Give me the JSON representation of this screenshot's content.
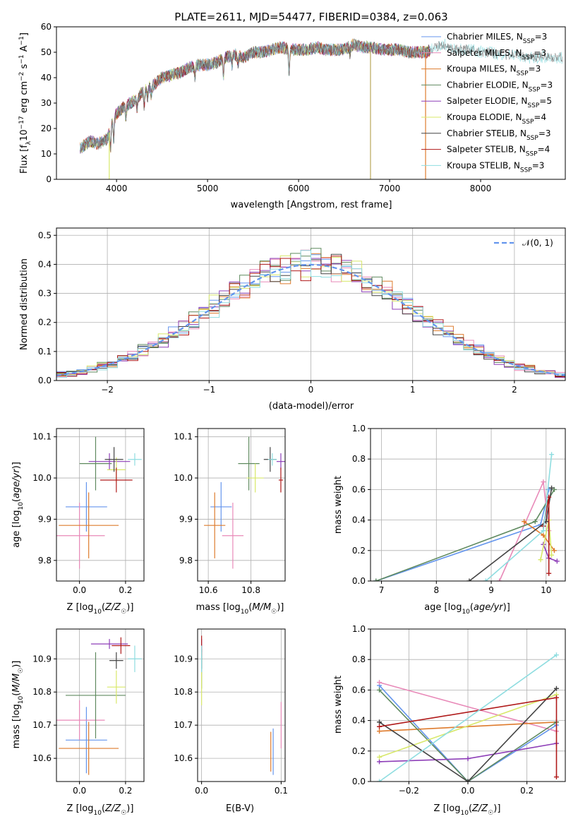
{
  "chart_data": [
    {
      "id": "spectrum",
      "type": "line",
      "title": "PLATE=2611, MJD=54477, FIBERID=0384, z=0.063",
      "xlabel": "wavelength [Angstrom, rest frame]",
      "ylabel_parts": [
        "Flux [f",
        "λ",
        "10",
        "−17",
        " erg cm",
        "−2",
        " s",
        "−1",
        " A",
        "−1",
        "]"
      ],
      "xlim": [
        3340,
        8930
      ],
      "ylim": [
        0,
        60
      ],
      "xticks": [
        "4000",
        "5000",
        "6000",
        "7000",
        "8000"
      ],
      "yticks": [
        "0",
        "10",
        "20",
        "30",
        "40",
        "50",
        "60"
      ],
      "legend_position": "right",
      "legend": [
        {
          "base": "Chabrier MILES, N",
          "sub": "SSP",
          "tail": "=3",
          "color": "#6495ed"
        },
        {
          "base": "Salpeter MILES, N",
          "sub": "SSP",
          "tail": "=3",
          "color": "#e889b8"
        },
        {
          "base": "Kroupa MILES, N",
          "sub": "SSP",
          "tail": "=3",
          "color": "#de7b2d"
        },
        {
          "base": "Chabrier ELODIE, N",
          "sub": "SSP",
          "tail": "=3",
          "color": "#5f8a5f"
        },
        {
          "base": "Salpeter ELODIE, N",
          "sub": "SSP",
          "tail": "=5",
          "color": "#8e3fb8"
        },
        {
          "base": "Kroupa ELODIE, N",
          "sub": "SSP",
          "tail": "=4",
          "color": "#d8e86a"
        },
        {
          "base": "Chabrier STELIB, N",
          "sub": "SSP",
          "tail": "=3",
          "color": "#444444"
        },
        {
          "base": "Salpeter STELIB, N",
          "sub": "SSP",
          "tail": "=4",
          "color": "#b01a1a"
        },
        {
          "base": "Kroupa STELIB, N",
          "sub": "SSP",
          "tail": "=3",
          "color": "#8fdde0"
        }
      ],
      "continuum": [
        [
          3600,
          12
        ],
        [
          3700,
          15
        ],
        [
          3800,
          14
        ],
        [
          3900,
          16
        ],
        [
          3950,
          22
        ],
        [
          4000,
          26
        ],
        [
          4100,
          29
        ],
        [
          4200,
          31
        ],
        [
          4300,
          35
        ],
        [
          4400,
          37
        ],
        [
          4500,
          40
        ],
        [
          4600,
          41
        ],
        [
          4700,
          42
        ],
        [
          4800,
          44
        ],
        [
          4900,
          45
        ],
        [
          5000,
          45
        ],
        [
          5100,
          46
        ],
        [
          5200,
          48
        ],
        [
          5300,
          49
        ],
        [
          5400,
          48
        ],
        [
          5500,
          50
        ],
        [
          5600,
          50
        ],
        [
          5700,
          51
        ],
        [
          5800,
          52
        ],
        [
          5900,
          51
        ],
        [
          6000,
          51
        ],
        [
          6100,
          51
        ],
        [
          6200,
          52
        ],
        [
          6300,
          51
        ],
        [
          6400,
          51
        ],
        [
          6500,
          51
        ],
        [
          6600,
          53
        ],
        [
          6700,
          52
        ],
        [
          6800,
          52
        ],
        [
          6900,
          51
        ],
        [
          7000,
          51
        ],
        [
          7100,
          51
        ],
        [
          7200,
          50
        ],
        [
          7300,
          50
        ],
        [
          7400,
          50
        ],
        [
          7500,
          52
        ],
        [
          7600,
          53
        ],
        [
          7700,
          51
        ],
        [
          7800,
          51
        ],
        [
          7900,
          51
        ],
        [
          8000,
          50
        ],
        [
          8100,
          50
        ],
        [
          8200,
          49
        ],
        [
          8300,
          49
        ],
        [
          8400,
          49
        ],
        [
          8500,
          48
        ],
        [
          8600,
          48
        ],
        [
          8700,
          48
        ],
        [
          8800,
          48
        ],
        [
          8900,
          48
        ]
      ],
      "absorption_lines": [
        [
          3934,
          8
        ],
        [
          3969,
          8
        ],
        [
          4102,
          5
        ],
        [
          4227,
          4
        ],
        [
          4304,
          6
        ],
        [
          4341,
          4
        ],
        [
          4383,
          4
        ],
        [
          4861,
          5
        ],
        [
          5175,
          7
        ],
        [
          5270,
          4
        ],
        [
          5335,
          3
        ],
        [
          5895,
          10
        ],
        [
          6563,
          3
        ]
      ],
      "spikes": [
        [
          3920,
          0
        ],
        [
          6790,
          0
        ],
        [
          7395,
          0
        ]
      ]
    },
    {
      "id": "residuals",
      "type": "histogram",
      "xlabel": "(data-model)/error",
      "ylabel": "Normed distribution",
      "xlim": [
        -2.5,
        2.5
      ],
      "ylim": [
        0,
        0.525
      ],
      "xticks": [
        "−2",
        "−1",
        "0",
        "1",
        "2"
      ],
      "yticks": [
        "0.0",
        "0.1",
        "0.2",
        "0.3",
        "0.4",
        "0.5"
      ],
      "gaussian_label": "𝒩(0, 1)",
      "gaussian_color": "#6495ed",
      "legend_position": "top-right",
      "bin_width": 0.1,
      "series_colors": [
        "#6495ed",
        "#e889b8",
        "#de7b2d",
        "#5f8a5f",
        "#8e3fb8",
        "#d8e86a",
        "#444444",
        "#b01a1a",
        "#8fdde0"
      ]
    },
    {
      "id": "age_vs_Z",
      "type": "errorbar",
      "xlabel": "Z [log10(Z/Z☉)]",
      "ylabel": "age  [log10(age/yr)]",
      "xlim": [
        -0.1,
        0.28
      ],
      "ylim": [
        9.75,
        10.12
      ],
      "xticks": [
        "0.0",
        "0.2"
      ],
      "yticks": [
        "9.8",
        "9.9",
        "10.0",
        "10.1"
      ],
      "points": [
        {
          "color": "#6495ed",
          "x": 0.03,
          "xerr": 0.09,
          "y": 9.93,
          "yerr": 0.06
        },
        {
          "color": "#e889b8",
          "x": 0.0,
          "xerr": 0.11,
          "y": 9.86,
          "yerr": 0.08
        },
        {
          "color": "#de7b2d",
          "x": 0.04,
          "xerr": 0.13,
          "y": 9.885,
          "yerr": 0.08
        },
        {
          "color": "#5f8a5f",
          "x": 0.07,
          "xerr": 0.07,
          "y": 10.035,
          "yerr": 0.065
        },
        {
          "color": "#8e3fb8",
          "x": 0.13,
          "xerr": 0.09,
          "y": 10.04,
          "yerr": 0.02
        },
        {
          "color": "#d8e86a",
          "x": 0.16,
          "xerr": 0.04,
          "y": 10.02,
          "yerr": 0.03
        },
        {
          "color": "#444444",
          "x": 0.15,
          "xerr": 0.04,
          "y": 10.045,
          "yerr": 0.03
        },
        {
          "color": "#b01a1a",
          "x": 0.16,
          "xerr": 0.07,
          "y": 9.995,
          "yerr": 0.03
        },
        {
          "color": "#8fdde0",
          "x": 0.24,
          "xerr": 0.03,
          "y": 10.045,
          "yerr": 0.015
        }
      ]
    },
    {
      "id": "age_vs_mass",
      "type": "errorbar",
      "xlabel": "mass [log10(M/M☉)]",
      "xlim": [
        10.55,
        10.96
      ],
      "ylim": [
        9.75,
        10.12
      ],
      "xticks": [
        "10.6",
        "10.8"
      ],
      "yticks": [
        "9.8",
        "9.9",
        "10.0",
        "10.1"
      ],
      "points": [
        {
          "color": "#6495ed",
          "x": 10.66,
          "xerr": 0.05,
          "y": 9.93,
          "yerr": 0.06
        },
        {
          "color": "#e889b8",
          "x": 10.715,
          "xerr": 0.05,
          "y": 9.86,
          "yerr": 0.08
        },
        {
          "color": "#de7b2d",
          "x": 10.63,
          "xerr": 0.05,
          "y": 9.885,
          "yerr": 0.08
        },
        {
          "color": "#5f8a5f",
          "x": 10.79,
          "xerr": 0.05,
          "y": 10.035,
          "yerr": 0.065
        },
        {
          "color": "#8e3fb8",
          "x": 10.94,
          "xerr": 0.02,
          "y": 10.04,
          "yerr": 0.02
        },
        {
          "color": "#d8e86a",
          "x": 10.82,
          "xerr": 0.04,
          "y": 10.0,
          "yerr": 0.035
        },
        {
          "color": "#444444",
          "x": 10.89,
          "xerr": 0.03,
          "y": 10.045,
          "yerr": 0.03
        },
        {
          "color": "#b01a1a",
          "x": 10.94,
          "xerr": 0.01,
          "y": 9.995,
          "yerr": 0.03
        },
        {
          "color": "#8fdde0",
          "x": 10.9,
          "xerr": 0.02,
          "y": 10.045,
          "yerr": 0.015
        }
      ]
    },
    {
      "id": "weight_vs_age",
      "type": "line",
      "xlabel": "age  [log10(age/yr)]",
      "ylabel": "mass weight",
      "xlim": [
        6.8,
        10.35
      ],
      "ylim": [
        0,
        1.0
      ],
      "xticks": [
        "7",
        "8",
        "9",
        "10"
      ],
      "yticks": [
        "0.0",
        "0.2",
        "0.4",
        "0.6",
        "0.8",
        "1.0"
      ],
      "series": [
        {
          "color": "#6495ed",
          "points": [
            [
              6.9,
              0.0
            ],
            [
              9.9,
              0.37
            ],
            [
              10.05,
              0.6
            ]
          ]
        },
        {
          "color": "#e889b8",
          "points": [
            [
              9.15,
              0.0
            ],
            [
              9.95,
              0.65
            ],
            [
              10.05,
              0.33
            ]
          ]
        },
        {
          "color": "#de7b2d",
          "points": [
            [
              9.6,
              0.39
            ],
            [
              9.95,
              0.3
            ],
            [
              10.15,
              0.2
            ]
          ]
        },
        {
          "color": "#5f8a5f",
          "points": [
            [
              6.9,
              0.0
            ],
            [
              9.8,
              0.39
            ],
            [
              10.15,
              0.6
            ]
          ]
        },
        {
          "color": "#8e3fb8",
          "points": [
            [
              9.95,
              0.24
            ],
            [
              10.05,
              0.15
            ],
            [
              10.2,
              0.13
            ]
          ]
        },
        {
          "color": "#d8e86a",
          "points": [
            [
              9.9,
              0.14
            ],
            [
              10.05,
              0.4
            ],
            [
              10.1,
              0.17
            ]
          ]
        },
        {
          "color": "#444444",
          "points": [
            [
              8.6,
              0.0
            ],
            [
              10.0,
              0.39
            ],
            [
              10.1,
              0.61
            ]
          ]
        },
        {
          "color": "#b01a1a",
          "points": [
            [
              9.95,
              0.36
            ],
            [
              10.05,
              0.55
            ],
            [
              10.05,
              0.05
            ]
          ]
        },
        {
          "color": "#8fdde0",
          "points": [
            [
              8.9,
              0.0
            ],
            [
              9.95,
              0.33
            ],
            [
              10.1,
              0.83
            ]
          ]
        }
      ]
    },
    {
      "id": "mass_vs_Z",
      "type": "errorbar",
      "xlabel": "Z [log10(Z/Z☉)]",
      "ylabel": "mass [log10(M/M☉)]",
      "xlim": [
        -0.1,
        0.28
      ],
      "ylim": [
        10.53,
        10.99
      ],
      "xticks": [
        "0.0",
        "0.2"
      ],
      "yticks": [
        "10.6",
        "10.7",
        "10.8",
        "10.9"
      ],
      "points": [
        {
          "color": "#6495ed",
          "x": 0.03,
          "xerr": 0.09,
          "y": 10.655,
          "yerr": 0.1
        },
        {
          "color": "#e889b8",
          "x": 0.0,
          "xerr": 0.11,
          "y": 10.715,
          "yerr": 0.06
        },
        {
          "color": "#de7b2d",
          "x": 0.04,
          "xerr": 0.13,
          "y": 10.63,
          "yerr": 0.08
        },
        {
          "color": "#5f8a5f",
          "x": 0.07,
          "xerr": 0.13,
          "y": 10.79,
          "yerr": 0.13
        },
        {
          "color": "#8e3fb8",
          "x": 0.13,
          "xerr": 0.08,
          "y": 10.945,
          "yerr": 0.015
        },
        {
          "color": "#d8e86a",
          "x": 0.16,
          "xerr": 0.04,
          "y": 10.815,
          "yerr": 0.05
        },
        {
          "color": "#444444",
          "x": 0.16,
          "xerr": 0.03,
          "y": 10.895,
          "yerr": 0.025
        },
        {
          "color": "#b01a1a",
          "x": 0.18,
          "xerr": 0.04,
          "y": 10.94,
          "yerr": 0.025
        },
        {
          "color": "#8fdde0",
          "x": 0.24,
          "xerr": 0.03,
          "y": 10.9,
          "yerr": 0.04
        }
      ]
    },
    {
      "id": "mass_vs_ebv",
      "type": "errorbar",
      "xlabel": "E(B-V)",
      "xlim": [
        -0.005,
        0.105
      ],
      "ylim": [
        10.53,
        10.99
      ],
      "xticks": [
        "0.0",
        "0.1"
      ],
      "yticks": [
        "10.6",
        "10.7",
        "10.8",
        "10.9"
      ],
      "points": [
        {
          "color": "#6495ed",
          "x": 0.09,
          "xerr": 0.0,
          "y": 10.62,
          "yerr": 0.07
        },
        {
          "color": "#e889b8",
          "x": 0.1,
          "xerr": 0.0,
          "y": 10.7,
          "yerr": 0.07
        },
        {
          "color": "#de7b2d",
          "x": 0.087,
          "xerr": 0.0,
          "y": 10.62,
          "yerr": 0.06
        },
        {
          "color": "#5f8a5f",
          "x": 0.0,
          "xerr": 0.0,
          "y": 10.86,
          "yerr": 0.05
        },
        {
          "color": "#8e3fb8",
          "x": 0.0,
          "xerr": 0.0,
          "y": 10.94,
          "yerr": 0.02
        },
        {
          "color": "#d8e86a",
          "x": 0.0,
          "xerr": 0.0,
          "y": 10.81,
          "yerr": 0.05
        },
        {
          "color": "#444444",
          "x": 0.0,
          "xerr": 0.0,
          "y": 10.9,
          "yerr": 0.03
        },
        {
          "color": "#b01a1a",
          "x": 0.0,
          "xerr": 0.0,
          "y": 10.94,
          "yerr": 0.03
        },
        {
          "color": "#8fdde0",
          "x": 0.0,
          "xerr": 0.0,
          "y": 10.9,
          "yerr": 0.04
        }
      ]
    },
    {
      "id": "weight_vs_Z",
      "type": "line",
      "xlabel": "Z [log10(Z/Z☉)]",
      "ylabel": "mass weight",
      "xlim": [
        -0.33,
        0.33
      ],
      "ylim": [
        0,
        1.0
      ],
      "xticks": [
        "−0.2",
        "0.0",
        "0.2"
      ],
      "yticks": [
        "0.0",
        "0.2",
        "0.4",
        "0.6",
        "0.8",
        "1.0"
      ],
      "series": [
        {
          "color": "#6495ed",
          "points": [
            [
              -0.3,
              0.63
            ],
            [
              0.0,
              0.0
            ],
            [
              0.3,
              0.37
            ]
          ]
        },
        {
          "color": "#e889b8",
          "points": [
            [
              -0.3,
              0.65
            ],
            [
              0.3,
              0.33
            ]
          ]
        },
        {
          "color": "#de7b2d",
          "points": [
            [
              -0.3,
              0.33
            ],
            [
              0.3,
              0.39
            ]
          ]
        },
        {
          "color": "#5f8a5f",
          "points": [
            [
              -0.3,
              0.6
            ],
            [
              0.0,
              0.0
            ],
            [
              0.3,
              0.39
            ]
          ]
        },
        {
          "color": "#8e3fb8",
          "points": [
            [
              -0.3,
              0.13
            ],
            [
              0.0,
              0.15
            ],
            [
              0.3,
              0.25
            ]
          ]
        },
        {
          "color": "#d8e86a",
          "points": [
            [
              -0.3,
              0.16
            ],
            [
              0.3,
              0.57
            ]
          ]
        },
        {
          "color": "#444444",
          "points": [
            [
              -0.3,
              0.39
            ],
            [
              0.0,
              0.0
            ],
            [
              0.3,
              0.61
            ]
          ]
        },
        {
          "color": "#b01a1a",
          "points": [
            [
              -0.3,
              0.36
            ],
            [
              0.3,
              0.55
            ],
            [
              0.3,
              0.03
            ]
          ]
        },
        {
          "color": "#8fdde0",
          "points": [
            [
              -0.3,
              0.0
            ],
            [
              0.3,
              0.83
            ]
          ]
        }
      ]
    }
  ]
}
